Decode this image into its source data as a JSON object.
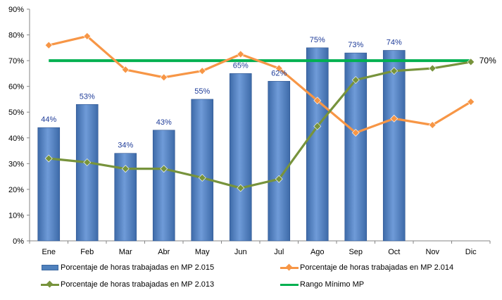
{
  "chart_data": {
    "type": "bar",
    "categories": [
      "Ene",
      "Feb",
      "Mar",
      "Abr",
      "May",
      "Jun",
      "Jul",
      "Ago",
      "Sep",
      "Oct",
      "Nov",
      "Dic"
    ],
    "ylim": [
      0,
      90
    ],
    "yticks": [
      "0%",
      "10%",
      "20%",
      "30%",
      "40%",
      "50%",
      "60%",
      "70%",
      "80%",
      "90%"
    ],
    "grid": false,
    "legend_position": "bottom",
    "series": [
      {
        "name": "Porcentaje de horas trabajadas en MP 2.015",
        "type": "bar",
        "color": "#4f81bd",
        "values": [
          44,
          53,
          34,
          43,
          55,
          65,
          62,
          75,
          73,
          74,
          null,
          null
        ],
        "labels": [
          "44%",
          "53%",
          "34%",
          "43%",
          "55%",
          "65%",
          "62%",
          "75%",
          "73%",
          "74%",
          "",
          ""
        ]
      },
      {
        "name": "Porcentaje de horas trabajadas en MP 2.014",
        "type": "line",
        "color": "#f79646",
        "marker": "diamond",
        "values": [
          76,
          79.5,
          66.5,
          63.5,
          66,
          72.5,
          67,
          54.5,
          42,
          47.5,
          45,
          54
        ]
      },
      {
        "name": "Porcentaje de horas trabajadas en MP 2.013",
        "type": "line",
        "color": "#77933c",
        "marker": "diamond",
        "values": [
          32,
          30.5,
          28,
          28,
          24.5,
          20.5,
          24,
          44.5,
          62.5,
          66,
          67,
          69.5
        ]
      },
      {
        "name": "Rango Mínimo MP",
        "type": "line",
        "color": "#00b050",
        "marker": "none",
        "values": [
          70,
          70,
          70,
          70,
          70,
          70,
          70,
          70,
          70,
          70,
          70,
          70
        ],
        "end_label": "70%"
      }
    ]
  }
}
